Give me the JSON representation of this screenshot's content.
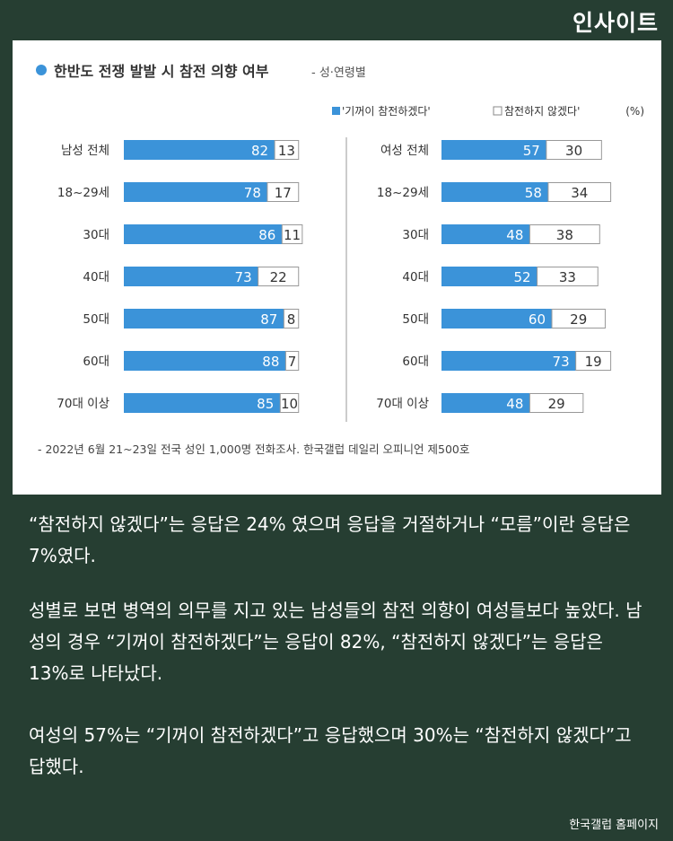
{
  "brand": "인사이트",
  "paragraphs": [
    "“참전하지 않겠다”는 응답은 24% 였으며 응답을 거절하거나 “모름”이란 응답은 7%였다.",
    "성별로 보면 병역의 의무를 지고 있는 남성들의 참전 의향이 여성들보다 높았다. 남성의 경우 “기꺼이 참전하겠다”는 응답이 82%, “참전하지 않겠다”는 응답은 13%로 나타났다.",
    "여성의 57%는 “기꺼이 참전하겠다”고 응답했으며 30%는 “참전하지 않겠다”고 답했다."
  ],
  "credit": "한국갤럽 홈페이지",
  "chart_data": {
    "type": "bar",
    "title": "한반도 전쟁 발발 시 참전 의향 여부",
    "subtitle": "- 성·연령별",
    "legend": [
      "'기꺼이 참전하겠다'",
      "참전하지 않겠다'",
      "(%)"
    ],
    "source": "- 2022년 6월 21~23일 전국 성인 1,000명 전화조사. 한국갤럽 데일리 오피니언 제500호",
    "colors": {
      "yes": "#3b93d9",
      "no": "#ffffff",
      "accent": "#3b93d9"
    },
    "panels": [
      {
        "categories": [
          "남성 전체",
          "18~29세",
          "30대",
          "40대",
          "50대",
          "60대",
          "70대 이상"
        ],
        "series": [
          {
            "name": "'기꺼이 참전하겠다'",
            "values": [
              82,
              78,
              86,
              73,
              87,
              88,
              85
            ]
          },
          {
            "name": "참전하지 않겠다'",
            "values": [
              13,
              17,
              11,
              22,
              8,
              7,
              10
            ]
          }
        ]
      },
      {
        "categories": [
          "여성 전체",
          "18~29세",
          "30대",
          "40대",
          "50대",
          "60대",
          "70대 이상"
        ],
        "series": [
          {
            "name": "'기꺼이 참전하겠다'",
            "values": [
              57,
              58,
              48,
              52,
              60,
              73,
              48
            ]
          },
          {
            "name": "참전하지 않겠다'",
            "values": [
              30,
              34,
              38,
              33,
              29,
              19,
              29
            ]
          }
        ]
      }
    ]
  }
}
